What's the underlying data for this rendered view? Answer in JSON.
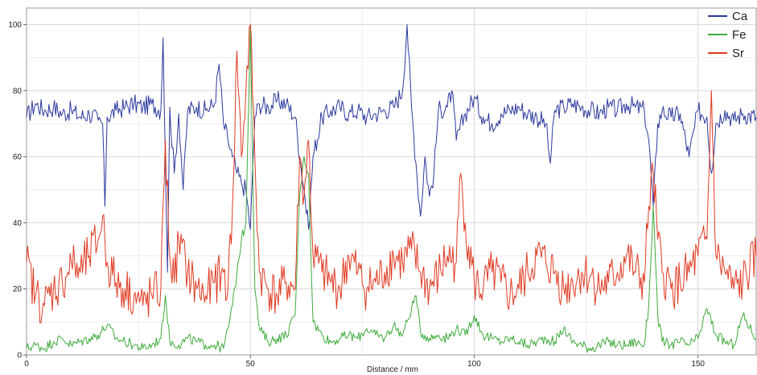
{
  "chart_data": {
    "type": "line",
    "xlabel": "Distance / mm",
    "ylabel": "",
    "xlim": [
      0,
      163
    ],
    "ylim": [
      0,
      105
    ],
    "x_ticks": [
      {
        "value": 0,
        "label": "0"
      },
      {
        "value": 50,
        "label": "50"
      },
      {
        "value": 100,
        "label": "100"
      },
      {
        "value": 150,
        "label": "150"
      }
    ],
    "y_ticks": [
      {
        "value": 0,
        "label": "0"
      },
      {
        "value": 20,
        "label": "20"
      },
      {
        "value": 40,
        "label": "40"
      },
      {
        "value": 60,
        "label": "60"
      },
      {
        "value": 80,
        "label": "80"
      },
      {
        "value": 100,
        "label": "100"
      }
    ],
    "grid": true,
    "legend_position": "top-right",
    "series": [
      {
        "name": "Ca",
        "color": "#2b3a9e",
        "x": [
          0,
          2,
          4,
          6,
          8,
          10,
          12,
          14,
          16,
          17,
          17.5,
          18,
          20,
          22,
          24,
          26,
          28,
          30,
          30.5,
          31,
          31.5,
          32,
          33,
          34,
          35,
          36,
          38,
          40,
          42,
          43,
          44,
          45,
          46,
          47,
          48,
          49,
          50,
          51,
          52,
          54,
          56,
          58,
          60,
          62,
          63,
          64,
          66,
          68,
          70,
          72,
          74,
          76,
          78,
          80,
          82,
          84,
          85,
          86,
          87,
          88,
          89,
          90,
          91,
          92,
          94,
          95,
          96,
          98,
          100,
          102,
          104,
          106,
          108,
          110,
          112,
          114,
          116,
          117,
          118,
          120,
          122,
          124,
          126,
          128,
          130,
          132,
          134,
          136,
          138,
          139,
          140,
          141,
          142,
          144,
          146,
          148,
          150,
          152,
          153,
          154,
          156,
          158,
          160,
          163
        ],
        "values": [
          72,
          76,
          74,
          75,
          73,
          74,
          72,
          73,
          71,
          70,
          45,
          72,
          74,
          75,
          76,
          75,
          76,
          74,
          96,
          60,
          25,
          75,
          55,
          73,
          50,
          74,
          75,
          74,
          76,
          88,
          70,
          65,
          60,
          55,
          52,
          50,
          38,
          72,
          76,
          75,
          77,
          76,
          72,
          50,
          38,
          60,
          72,
          74,
          75,
          73,
          74,
          72,
          73,
          74,
          75,
          80,
          100,
          75,
          58,
          42,
          60,
          48,
          55,
          74,
          75,
          80,
          65,
          73,
          78,
          72,
          70,
          73,
          74,
          75,
          73,
          72,
          70,
          58,
          74,
          75,
          76,
          75,
          74,
          73,
          75,
          74,
          76,
          75,
          74,
          65,
          45,
          70,
          74,
          72,
          73,
          60,
          74,
          72,
          55,
          70,
          74,
          71,
          73,
          72
        ]
      },
      {
        "name": "Fe",
        "color": "#3daa3a",
        "x": [
          0,
          2,
          4,
          6,
          8,
          10,
          12,
          14,
          16,
          18,
          20,
          22,
          24,
          26,
          28,
          30,
          31,
          32,
          34,
          36,
          38,
          40,
          42,
          44,
          45,
          46,
          47,
          48,
          49,
          50,
          51,
          52,
          54,
          56,
          58,
          60,
          61,
          62,
          63,
          64,
          66,
          68,
          70,
          72,
          74,
          76,
          78,
          80,
          82,
          84,
          86,
          87,
          88,
          90,
          92,
          94,
          96,
          98,
          100,
          102,
          104,
          106,
          108,
          110,
          112,
          114,
          116,
          118,
          120,
          122,
          124,
          126,
          128,
          130,
          132,
          134,
          136,
          138,
          139,
          140,
          141,
          142,
          144,
          146,
          148,
          150,
          152,
          154,
          156,
          158,
          160,
          163
        ],
        "values": [
          2,
          3,
          2,
          4,
          5,
          3,
          4,
          5,
          6,
          9,
          5,
          4,
          3,
          2,
          3,
          5,
          18,
          4,
          3,
          5,
          4,
          3,
          3,
          2,
          8,
          15,
          25,
          35,
          40,
          100,
          20,
          8,
          4,
          5,
          6,
          12,
          48,
          60,
          55,
          10,
          6,
          4,
          5,
          6,
          5,
          8,
          6,
          5,
          9,
          6,
          14,
          18,
          7,
          5,
          6,
          5,
          8,
          6,
          12,
          6,
          5,
          4,
          5,
          4,
          3,
          4,
          5,
          4,
          8,
          4,
          3,
          2,
          3,
          4,
          3,
          3,
          4,
          3,
          15,
          45,
          12,
          4,
          3,
          4,
          3,
          5,
          14,
          6,
          4,
          3,
          12,
          5
        ]
      },
      {
        "name": "Sr",
        "color": "#e03a22",
        "x": [
          0,
          2,
          4,
          6,
          8,
          10,
          12,
          14,
          16,
          17,
          18,
          20,
          22,
          24,
          26,
          28,
          30,
          31,
          32,
          33,
          34,
          36,
          38,
          40,
          42,
          44,
          45,
          46,
          47,
          48,
          49,
          50,
          51,
          52,
          54,
          56,
          58,
          60,
          61,
          62,
          63,
          64,
          66,
          68,
          70,
          72,
          74,
          76,
          78,
          80,
          82,
          84,
          86,
          88,
          90,
          92,
          94,
          96,
          97,
          98,
          100,
          102,
          104,
          106,
          108,
          110,
          112,
          114,
          116,
          118,
          120,
          122,
          124,
          126,
          128,
          130,
          132,
          134,
          136,
          138,
          139,
          140,
          141,
          142,
          144,
          146,
          148,
          150,
          152,
          153,
          154,
          156,
          158,
          160,
          163
        ],
        "values": [
          28,
          18,
          15,
          20,
          22,
          28,
          25,
          30,
          35,
          42,
          28,
          22,
          20,
          18,
          15,
          18,
          20,
          65,
          30,
          22,
          35,
          25,
          20,
          18,
          22,
          25,
          20,
          45,
          92,
          60,
          80,
          100,
          60,
          25,
          20,
          18,
          22,
          20,
          60,
          48,
          65,
          30,
          25,
          22,
          20,
          30,
          25,
          20,
          22,
          25,
          30,
          28,
          32,
          25,
          20,
          24,
          30,
          28,
          55,
          40,
          22,
          20,
          25,
          22,
          18,
          20,
          25,
          30,
          28,
          25,
          20,
          22,
          25,
          24,
          20,
          22,
          25,
          30,
          25,
          22,
          45,
          55,
          35,
          25,
          20,
          22,
          25,
          30,
          35,
          80,
          30,
          25,
          20,
          22,
          30
        ]
      }
    ]
  }
}
